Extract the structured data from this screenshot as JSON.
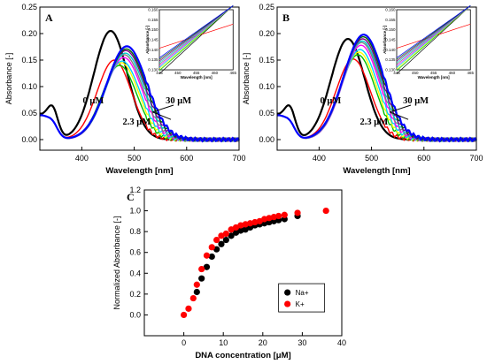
{
  "chart_data": [
    {
      "panel": "A",
      "type": "line",
      "xlabel": "Wavelength [nm]",
      "ylabel": "Absorbance [-]",
      "xlim": [
        320,
        700
      ],
      "ylim": [
        -0.02,
        0.25
      ],
      "xticks": [
        400,
        500,
        600,
        700
      ],
      "yticks": [
        0.0,
        0.05,
        0.1,
        0.15,
        0.2,
        0.25
      ],
      "annotations": {
        "start": "0 μM",
        "end": "30 μM",
        "mid": "2.3 μM"
      },
      "series": [
        {
          "color": "#000000",
          "peak_x": 455,
          "peak_y": 0.205
        },
        {
          "color": "#ff0000",
          "peak_x": 462,
          "peak_y": 0.15
        },
        {
          "color": "#00c000",
          "peak_x": 472,
          "peak_y": 0.14
        },
        {
          "color": "#ffff00",
          "peak_x": 475,
          "peak_y": 0.145
        },
        {
          "color": "#00d0ff",
          "peak_x": 477,
          "peak_y": 0.148
        },
        {
          "color": "#ff00ff",
          "peak_x": 480,
          "peak_y": 0.155
        },
        {
          "color": "#808080",
          "peak_x": 481,
          "peak_y": 0.16
        },
        {
          "color": "#00c8c8",
          "peak_x": 483,
          "peak_y": 0.163
        },
        {
          "color": "#800080",
          "peak_x": 484,
          "peak_y": 0.168
        },
        {
          "color": "#006400",
          "peak_x": 485,
          "peak_y": 0.171
        },
        {
          "color": "#0000ff",
          "peak_x": 486,
          "peak_y": 0.176
        }
      ],
      "inset": {
        "xlabel": "Wavelength [nm]",
        "ylabel": "Absorbance [-]",
        "xlim": [
          445,
          465
        ],
        "ylim": [
          0.13,
          0.16
        ],
        "xticks": [
          445,
          450,
          455,
          460,
          465
        ],
        "yticks": [
          0.13,
          0.135,
          0.14,
          0.145,
          0.15,
          0.155,
          0.16
        ]
      }
    },
    {
      "panel": "B",
      "type": "line",
      "xlabel": "Wavelength [nm]",
      "ylabel": "Absorbance [-]",
      "xlim": [
        320,
        700
      ],
      "ylim": [
        -0.02,
        0.25
      ],
      "xticks": [
        400,
        500,
        600,
        700
      ],
      "yticks": [
        0.0,
        0.05,
        0.1,
        0.15,
        0.2,
        0.25
      ],
      "annotations": {
        "start": "0 μM",
        "end": "30 μM",
        "mid": "2.3 μM"
      },
      "series": [
        {
          "color": "#000000",
          "peak_x": 455,
          "peak_y": 0.19
        },
        {
          "color": "#ff0000",
          "peak_x": 465,
          "peak_y": 0.152
        },
        {
          "color": "#00c000",
          "peak_x": 474,
          "peak_y": 0.16
        },
        {
          "color": "#ffff00",
          "peak_x": 476,
          "peak_y": 0.165
        },
        {
          "color": "#00d0ff",
          "peak_x": 478,
          "peak_y": 0.17
        },
        {
          "color": "#ff00ff",
          "peak_x": 480,
          "peak_y": 0.178
        },
        {
          "color": "#808080",
          "peak_x": 481,
          "peak_y": 0.183
        },
        {
          "color": "#00c8c8",
          "peak_x": 482,
          "peak_y": 0.186
        },
        {
          "color": "#800080",
          "peak_x": 483,
          "peak_y": 0.19
        },
        {
          "color": "#006400",
          "peak_x": 484,
          "peak_y": 0.194
        },
        {
          "color": "#0000ff",
          "peak_x": 485,
          "peak_y": 0.198
        }
      ],
      "inset": {
        "xlabel": "Wavelength [nm]",
        "ylabel": "Absorbance [-]",
        "xlim": [
          445,
          465
        ],
        "ylim": [
          0.13,
          0.16
        ],
        "xticks": [
          445,
          450,
          455,
          460,
          465
        ],
        "yticks": [
          0.13,
          0.135,
          0.14,
          0.145,
          0.15,
          0.155,
          0.16
        ]
      }
    },
    {
      "panel": "C",
      "type": "scatter",
      "xlabel": "DNA concentration [μM]",
      "ylabel": "Normalized Absorbance [-]",
      "xlim": [
        -10,
        40
      ],
      "ylim": [
        -0.2,
        1.2
      ],
      "xticks": [
        0,
        10,
        20,
        30,
        40
      ],
      "yticks": [
        0.0,
        0.2,
        0.4,
        0.6,
        0.8,
        1.0,
        1.2
      ],
      "legend_position": "bottom-right",
      "series": [
        {
          "name": "Na+",
          "color": "#000000",
          "points": [
            [
              3.3,
              0.22
            ],
            [
              4.5,
              0.35
            ],
            [
              5.8,
              0.46
            ],
            [
              7.1,
              0.56
            ],
            [
              8.3,
              0.63
            ],
            [
              9.5,
              0.68
            ],
            [
              10.7,
              0.72
            ],
            [
              12,
              0.76
            ],
            [
              13.2,
              0.79
            ],
            [
              14.4,
              0.81
            ],
            [
              15.6,
              0.82
            ],
            [
              16.8,
              0.84
            ],
            [
              18,
              0.86
            ],
            [
              19.2,
              0.87
            ],
            [
              20.4,
              0.88
            ],
            [
              21.6,
              0.89
            ],
            [
              22.8,
              0.9
            ],
            [
              24,
              0.91
            ],
            [
              25.5,
              0.92
            ],
            [
              28.8,
              0.95
            ]
          ]
        },
        {
          "name": "K+",
          "color": "#ff0000",
          "points": [
            [
              0,
              0
            ],
            [
              1.2,
              0.06
            ],
            [
              2.4,
              0.16
            ],
            [
              3.3,
              0.29
            ],
            [
              4.5,
              0.44
            ],
            [
              5.8,
              0.57
            ],
            [
              7.1,
              0.65
            ],
            [
              8.3,
              0.72
            ],
            [
              9.5,
              0.76
            ],
            [
              10.7,
              0.78
            ],
            [
              12,
              0.82
            ],
            [
              13.2,
              0.84
            ],
            [
              14.4,
              0.86
            ],
            [
              15.6,
              0.87
            ],
            [
              16.8,
              0.88
            ],
            [
              18,
              0.89
            ],
            [
              19.2,
              0.9
            ],
            [
              20.4,
              0.92
            ],
            [
              21.6,
              0.93
            ],
            [
              22.8,
              0.94
            ],
            [
              24,
              0.95
            ],
            [
              25.5,
              0.96
            ],
            [
              28.8,
              0.98
            ],
            [
              36,
              1.0
            ]
          ]
        }
      ]
    }
  ]
}
